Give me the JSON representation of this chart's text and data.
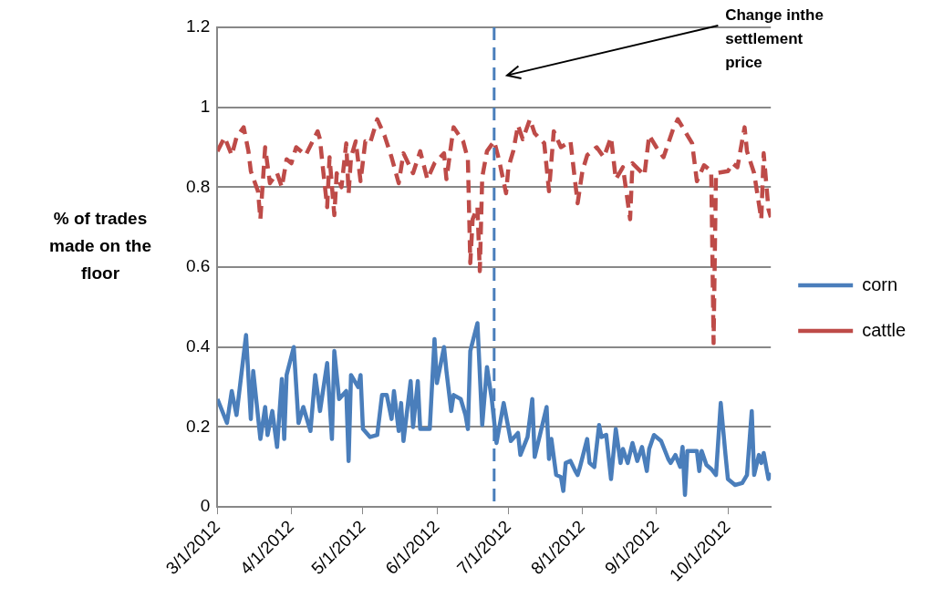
{
  "chart_data": {
    "type": "line",
    "ylabel": "% of trades made on the floor",
    "xlim": [
      "2012-03-01",
      "2012-10-19"
    ],
    "xticks": [
      {
        "value": "2012-03-01",
        "label": "3/1/2012"
      },
      {
        "value": "2012-04-01",
        "label": "4/1/2012"
      },
      {
        "value": "2012-05-01",
        "label": "5/1/2012"
      },
      {
        "value": "2012-06-01",
        "label": "6/1/2012"
      },
      {
        "value": "2012-07-01",
        "label": "7/1/2012"
      },
      {
        "value": "2012-08-01",
        "label": "8/1/2012"
      },
      {
        "value": "2012-09-01",
        "label": "9/1/2012"
      },
      {
        "value": "2012-10-01",
        "label": "10/1/2012"
      }
    ],
    "ylim": [
      0,
      1.2
    ],
    "yticks": [
      0,
      0.2,
      0.4,
      0.6,
      0.8,
      1,
      1.2
    ],
    "grid": "y",
    "legend": "right",
    "marker": "none",
    "ref_lines": [
      {
        "axis": "x",
        "value": "2012-06-25",
        "color": "#4a7ebb",
        "line_style": "dashed"
      }
    ],
    "annotations": [
      "Change inthe settlement price"
    ],
    "series": [
      {
        "name": "corn",
        "color": "#4a7ebb",
        "line_style": "solid",
        "x": [
          "2012-03-01",
          "2012-03-05",
          "2012-03-07",
          "2012-03-09",
          "2012-03-13",
          "2012-03-15",
          "2012-03-16",
          "2012-03-19",
          "2012-03-21",
          "2012-03-22",
          "2012-03-24",
          "2012-03-26",
          "2012-03-28",
          "2012-03-29",
          "2012-03-30",
          "2012-04-02",
          "2012-04-04",
          "2012-04-06",
          "2012-04-09",
          "2012-04-11",
          "2012-04-13",
          "2012-04-16",
          "2012-04-18",
          "2012-04-19",
          "2012-04-21",
          "2012-04-24",
          "2012-04-25",
          "2012-04-26",
          "2012-04-29",
          "2012-04-30",
          "2012-05-01",
          "2012-05-04",
          "2012-05-07",
          "2012-05-09",
          "2012-05-11",
          "2012-05-13",
          "2012-05-14",
          "2012-05-16",
          "2012-05-17",
          "2012-05-18",
          "2012-05-21",
          "2012-05-22",
          "2012-05-24",
          "2012-05-25",
          "2012-05-29",
          "2012-05-31",
          "2012-06-01",
          "2012-06-04",
          "2012-06-05",
          "2012-06-07",
          "2012-06-08",
          "2012-06-11",
          "2012-06-13",
          "2012-06-14",
          "2012-06-15",
          "2012-06-18",
          "2012-06-20",
          "2012-06-22",
          "2012-06-24",
          "2012-06-26",
          "2012-06-29",
          "2012-07-02",
          "2012-07-05",
          "2012-07-06",
          "2012-07-09",
          "2012-07-11",
          "2012-07-12",
          "2012-07-17",
          "2012-07-18",
          "2012-07-19",
          "2012-07-21",
          "2012-07-23",
          "2012-07-24",
          "2012-07-25",
          "2012-07-27",
          "2012-07-29",
          "2012-07-30",
          "2012-07-31",
          "2012-08-03",
          "2012-08-04",
          "2012-08-06",
          "2012-08-08",
          "2012-08-09",
          "2012-08-11",
          "2012-08-13",
          "2012-08-15",
          "2012-08-17",
          "2012-08-18",
          "2012-08-20",
          "2012-08-22",
          "2012-08-24",
          "2012-08-26",
          "2012-08-28",
          "2012-08-29",
          "2012-08-31",
          "2012-09-03",
          "2012-09-06",
          "2012-09-07",
          "2012-09-09",
          "2012-09-11",
          "2012-09-12",
          "2012-09-13",
          "2012-09-14",
          "2012-09-18",
          "2012-09-19",
          "2012-09-20",
          "2012-09-22",
          "2012-09-24",
          "2012-09-26",
          "2012-09-28",
          "2012-09-30",
          "2012-10-01",
          "2012-10-04",
          "2012-10-07",
          "2012-10-09",
          "2012-10-11",
          "2012-10-12",
          "2012-10-14",
          "2012-10-15",
          "2012-10-16",
          "2012-10-18",
          "2012-10-19"
        ],
        "values": [
          0.27,
          0.21,
          0.29,
          0.23,
          0.43,
          0.22,
          0.34,
          0.17,
          0.25,
          0.18,
          0.24,
          0.15,
          0.32,
          0.17,
          0.33,
          0.4,
          0.21,
          0.25,
          0.19,
          0.33,
          0.24,
          0.36,
          0.17,
          0.39,
          0.27,
          0.29,
          0.115,
          0.33,
          0.3,
          0.33,
          0.195,
          0.175,
          0.18,
          0.28,
          0.28,
          0.22,
          0.29,
          0.19,
          0.26,
          0.165,
          0.315,
          0.2,
          0.315,
          0.195,
          0.195,
          0.42,
          0.31,
          0.4,
          0.34,
          0.24,
          0.28,
          0.27,
          0.23,
          0.195,
          0.39,
          0.46,
          0.205,
          0.35,
          0.27,
          0.16,
          0.26,
          0.165,
          0.185,
          0.13,
          0.175,
          0.27,
          0.125,
          0.25,
          0.12,
          0.17,
          0.08,
          0.075,
          0.04,
          0.11,
          0.115,
          0.09,
          0.08,
          0.1,
          0.17,
          0.11,
          0.1,
          0.205,
          0.175,
          0.18,
          0.07,
          0.195,
          0.11,
          0.145,
          0.11,
          0.16,
          0.115,
          0.15,
          0.09,
          0.145,
          0.18,
          0.165,
          0.12,
          0.11,
          0.13,
          0.1,
          0.15,
          0.03,
          0.14,
          0.14,
          0.09,
          0.14,
          0.105,
          0.095,
          0.08,
          0.26,
          0.13,
          0.07,
          0.055,
          0.06,
          0.08,
          0.24,
          0.08,
          0.13,
          0.11,
          0.135,
          0.07,
          0.085
        ]
      },
      {
        "name": "cattle",
        "color": "#be4b48",
        "line_style": "dashed",
        "x": [
          "2012-03-01",
          "2012-03-04",
          "2012-03-07",
          "2012-03-09",
          "2012-03-12",
          "2012-03-14",
          "2012-03-15",
          "2012-03-18",
          "2012-03-19",
          "2012-03-21",
          "2012-03-23",
          "2012-03-26",
          "2012-03-28",
          "2012-03-30",
          "2012-04-01",
          "2012-04-03",
          "2012-04-07",
          "2012-04-12",
          "2012-04-13",
          "2012-04-14",
          "2012-04-16",
          "2012-04-17",
          "2012-04-19",
          "2012-04-20",
          "2012-04-22",
          "2012-04-24",
          "2012-04-25",
          "2012-04-26",
          "2012-04-28",
          "2012-04-30",
          "2012-05-02",
          "2012-05-04",
          "2012-05-07",
          "2012-05-10",
          "2012-05-13",
          "2012-05-16",
          "2012-05-18",
          "2012-05-22",
          "2012-05-25",
          "2012-05-28",
          "2012-05-31",
          "2012-06-04",
          "2012-06-05",
          "2012-06-08",
          "2012-06-12",
          "2012-06-14",
          "2012-06-15",
          "2012-06-16",
          "2012-06-18",
          "2012-06-19",
          "2012-06-20",
          "2012-06-22",
          "2012-06-25",
          "2012-06-27",
          "2012-06-30",
          "2012-07-01",
          "2012-07-03",
          "2012-07-05",
          "2012-07-07",
          "2012-07-10",
          "2012-07-12",
          "2012-07-16",
          "2012-07-18",
          "2012-07-20",
          "2012-07-23",
          "2012-07-27",
          "2012-07-30",
          "2012-08-01",
          "2012-08-03",
          "2012-08-07",
          "2012-08-10",
          "2012-08-13",
          "2012-08-15",
          "2012-08-18",
          "2012-08-21",
          "2012-08-22",
          "2012-08-27",
          "2012-08-29",
          "2012-09-01",
          "2012-09-04",
          "2012-09-08",
          "2012-09-10",
          "2012-09-16",
          "2012-09-18",
          "2012-09-21",
          "2012-09-24",
          "2012-09-25",
          "2012-09-26",
          "2012-10-01",
          "2012-10-03",
          "2012-10-05",
          "2012-10-08",
          "2012-10-09",
          "2012-10-12",
          "2012-10-15",
          "2012-10-16",
          "2012-10-18",
          "2012-10-19"
        ],
        "values": [
          0.89,
          0.925,
          0.88,
          0.925,
          0.95,
          0.89,
          0.84,
          0.79,
          0.72,
          0.9,
          0.81,
          0.835,
          0.8,
          0.87,
          0.86,
          0.9,
          0.88,
          0.94,
          0.92,
          0.86,
          0.75,
          0.875,
          0.73,
          0.835,
          0.8,
          0.91,
          0.785,
          0.875,
          0.915,
          0.815,
          0.915,
          0.91,
          0.97,
          0.93,
          0.875,
          0.81,
          0.885,
          0.835,
          0.89,
          0.82,
          0.86,
          0.885,
          0.82,
          0.95,
          0.915,
          0.87,
          0.61,
          0.72,
          0.75,
          0.59,
          0.825,
          0.89,
          0.915,
          0.87,
          0.785,
          0.85,
          0.89,
          0.955,
          0.92,
          0.97,
          0.935,
          0.91,
          0.79,
          0.94,
          0.9,
          0.915,
          0.76,
          0.84,
          0.88,
          0.9,
          0.875,
          0.925,
          0.82,
          0.85,
          0.72,
          0.86,
          0.83,
          0.93,
          0.9,
          0.875,
          0.945,
          0.97,
          0.91,
          0.815,
          0.855,
          0.84,
          0.41,
          0.835,
          0.84,
          0.86,
          0.85,
          0.95,
          0.89,
          0.835,
          0.72,
          0.885,
          0.745,
          0.725
        ]
      }
    ]
  }
}
